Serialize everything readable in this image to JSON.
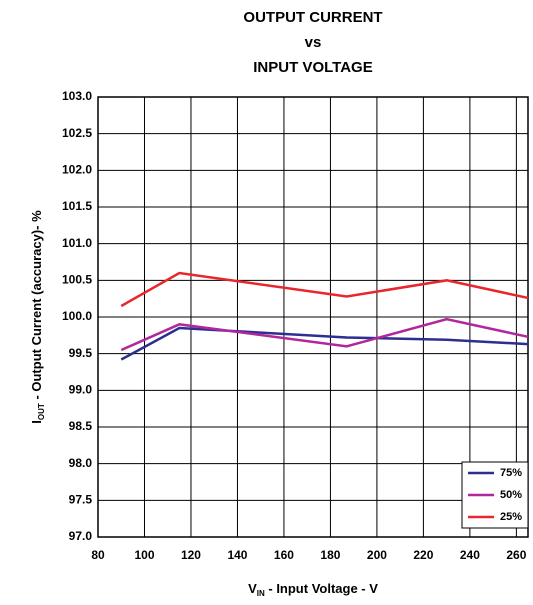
{
  "chart_data": {
    "type": "line",
    "title": [
      "OUTPUT CURRENT",
      "vs",
      "INPUT VOLTAGE"
    ],
    "xlabel": {
      "main": "V",
      "sub": "IN",
      "rest": " - Input Voltage - V"
    },
    "ylabel": {
      "main": "I",
      "sub": "OUT",
      "rest": " - Output  Current  (accuracy)- %"
    },
    "x": [
      90,
      115,
      187,
      230,
      265
    ],
    "series": [
      {
        "name": "75%",
        "color": "#2b2f8f",
        "values": [
          99.42,
          99.85,
          99.72,
          99.69,
          99.63
        ]
      },
      {
        "name": "50%",
        "color": "#b0279e",
        "values": [
          99.55,
          99.9,
          99.6,
          99.97,
          99.73
        ]
      },
      {
        "name": "25%",
        "color": "#e8262b",
        "values": [
          100.15,
          100.6,
          100.28,
          100.5,
          100.26
        ]
      }
    ],
    "xlim": [
      80,
      265
    ],
    "xticks": [
      80,
      100,
      120,
      140,
      160,
      180,
      200,
      220,
      240,
      260
    ],
    "ylim": [
      97,
      103
    ],
    "yticks": [
      {
        "value": 97,
        "label": "97.0"
      },
      97.5,
      {
        "value": 98,
        "label": "98.0"
      },
      98.5,
      {
        "value": 99,
        "label": "99.0"
      },
      99.5,
      {
        "value": 100,
        "label": "100.0"
      },
      100.5,
      {
        "value": 101,
        "label": "101.0"
      },
      101.5,
      {
        "value": 102,
        "label": "102.0"
      },
      102.5,
      {
        "value": 103,
        "label": "103.0"
      }
    ],
    "grid": true,
    "legend": "lower right"
  }
}
